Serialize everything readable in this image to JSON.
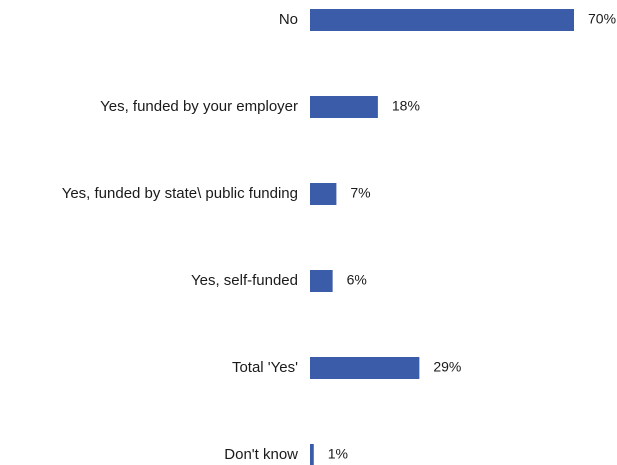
{
  "chart_data": {
    "type": "bar",
    "orientation": "horizontal",
    "categories": [
      "No",
      "Yes, funded by your employer",
      "Yes, funded by state\\ public funding",
      "Yes, self-funded",
      "Total 'Yes'",
      "Don't know"
    ],
    "values": [
      70,
      18,
      7,
      6,
      29,
      1
    ],
    "value_labels": [
      "70%",
      "18%",
      "7%",
      "6%",
      "29%",
      "1%"
    ],
    "unit": "%",
    "xlim": [
      0,
      70
    ],
    "grid": false,
    "legend": "none",
    "bar_color": "#3B5CA8"
  }
}
